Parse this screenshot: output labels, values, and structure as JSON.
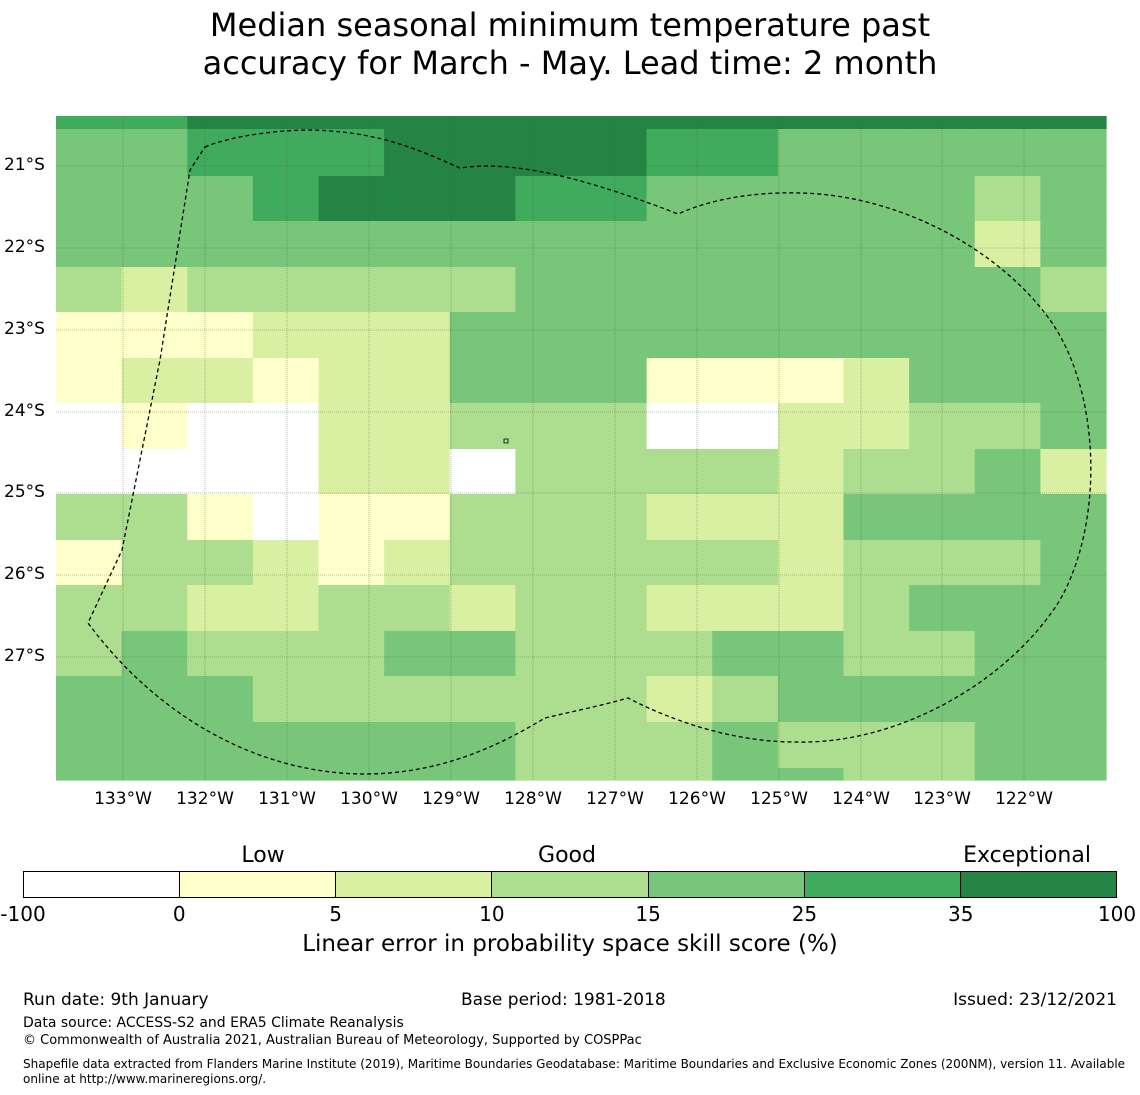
{
  "title": {
    "line1": "Median seasonal minimum temperature past",
    "line2": "accuracy for March - May. Lead time: 2 month"
  },
  "map": {
    "lat_labels": [
      "21°S",
      "22°S",
      "23°S",
      "24°S",
      "25°S",
      "26°S",
      "27°S"
    ],
    "lon_labels": [
      "133°W",
      "132°W",
      "131°W",
      "130°W",
      "129°W",
      "128°W",
      "127°W",
      "126°W",
      "125°W",
      "124°W",
      "123°W",
      "122°W"
    ],
    "boundary": "Exclusive Economic Zone (200NM)",
    "grid": [
      "5566666666666666",
      "4455566665544444",
      "4445666554444434",
      "4444444444444424",
      "3233333444444443",
      "1112224444444444",
      "1221224441112444",
      "0100223330022334",
      "0000220333323342",
      "3310113332224444",
      "1332123333323334",
      "3322332332223444",
      "3433344333443344",
      "4443333332344444",
      "4444444333433344",
      "4444444333443344"
    ]
  },
  "legend": {
    "categories": [
      "Low",
      "Good",
      "Exceptional"
    ],
    "colors": [
      "#ffffff",
      "#ffffcc",
      "#d9f0a3",
      "#addd8e",
      "#78c679",
      "#41ab5d",
      "#238443"
    ],
    "ticks": [
      "-100",
      "0",
      "5",
      "10",
      "15",
      "25",
      "35",
      "100"
    ],
    "label": "Linear error in probability space skill score (%)"
  },
  "footer": {
    "run_date": "Run date: 9th January",
    "base_period": "Base period: 1981-2018",
    "issued": "Issued: 23/12/2021",
    "data_source": "Data source: ACCESS-S2 and ERA5 Climate Reanalysis",
    "copyright": "© Commonwealth of Australia 2021, Australian Bureau of Meteorology, Supported by COSPPac",
    "shapefile_line1": "Shapefile data extracted from Flanders Marine Institute (2019), Maritime Boundaries Geodatabase: Maritime Boundaries and Exclusive Economic Zones (200NM), version 11. Available",
    "shapefile_line2": "online at http://www.marineregions.org/."
  }
}
